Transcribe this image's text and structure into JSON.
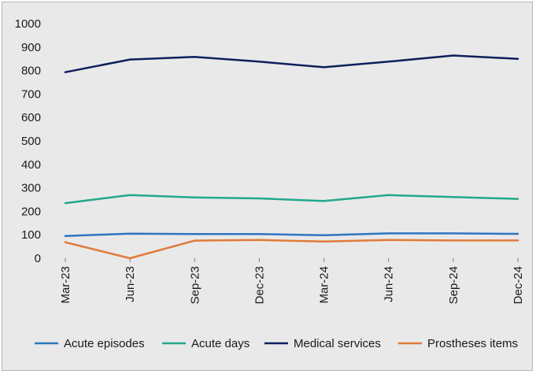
{
  "chart_data": {
    "type": "line",
    "title": "",
    "xlabel": "",
    "ylabel": "",
    "ylim": [
      0,
      1000
    ],
    "yticks": [
      "0",
      "100",
      "200",
      "300",
      "400",
      "500",
      "600",
      "700",
      "800",
      "900",
      "1000"
    ],
    "categories": [
      "Mar-23",
      "Jun-23",
      "Sep-23",
      "Dec-23",
      "Mar-24",
      "Jun-24",
      "Sep-24",
      "Dec-24"
    ],
    "grid": false,
    "legend_position": "bottom",
    "series": [
      {
        "name": "Acute episodes",
        "color": "#2e75c2",
        "values": [
          95,
          105,
          103,
          103,
          98,
          106,
          106,
          104
        ]
      },
      {
        "name": "Acute days",
        "color": "#22a88a",
        "values": [
          235,
          269,
          259,
          255,
          244,
          269,
          261,
          253
        ]
      },
      {
        "name": "Medical services",
        "color": "#0f1f5c",
        "values": [
          793,
          847,
          858,
          838,
          814,
          838,
          864,
          850
        ]
      },
      {
        "name": "Prostheses items",
        "color": "#e07b39",
        "values": [
          68,
          0,
          75,
          78,
          71,
          78,
          76,
          76
        ]
      }
    ]
  }
}
